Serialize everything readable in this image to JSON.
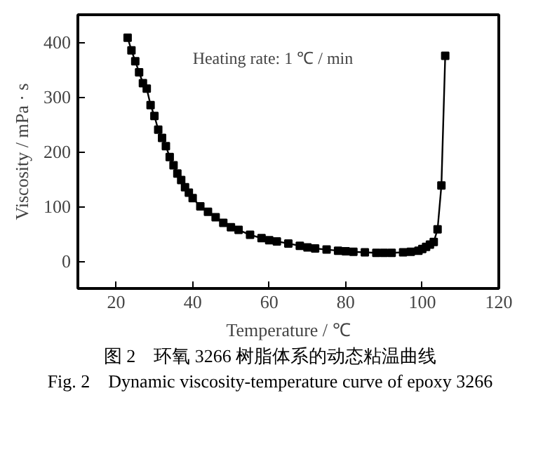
{
  "chart_data": {
    "type": "line",
    "xlabel": "Temperature / ℃",
    "ylabel": "Viscosity / mPa · s",
    "annotations": [
      "Heating rate: 1 ℃ / min",
      "图 2　环氧 3266 树脂体系的动态粘温曲线",
      "Fig. 2　Dynamic viscosity-temperature curve of epoxy 3266"
    ],
    "x": [
      23,
      24,
      25,
      26,
      27,
      28,
      29,
      30,
      31,
      32,
      33,
      34,
      35,
      36,
      37,
      38,
      39,
      40,
      42,
      44,
      46,
      48,
      50,
      52,
      55,
      58,
      60,
      62,
      65,
      68,
      70,
      72,
      75,
      78,
      80,
      82,
      85,
      88,
      90,
      92,
      95,
      97,
      99,
      100,
      101,
      102,
      103,
      104,
      105,
      106
    ],
    "series": [
      {
        "color": "#000000",
        "values": [
          408,
          385,
          365,
          345,
          325,
          315,
          285,
          265,
          240,
          225,
          210,
          190,
          175,
          160,
          148,
          135,
          125,
          115,
          100,
          90,
          80,
          70,
          62,
          57,
          48,
          42,
          38,
          36,
          32,
          28,
          25,
          23,
          21,
          19,
          18,
          17,
          16,
          15,
          15,
          15,
          16,
          17,
          19,
          22,
          26,
          30,
          35,
          58,
          138,
          375
        ]
      }
    ],
    "xlim": [
      10,
      120
    ],
    "ylim": [
      -50,
      450
    ],
    "xticks": [
      20,
      40,
      60,
      80,
      100,
      120
    ],
    "yticks": [
      0,
      100,
      200,
      300,
      400
    ],
    "grid": false,
    "marker": "square",
    "line_style": "solid"
  }
}
